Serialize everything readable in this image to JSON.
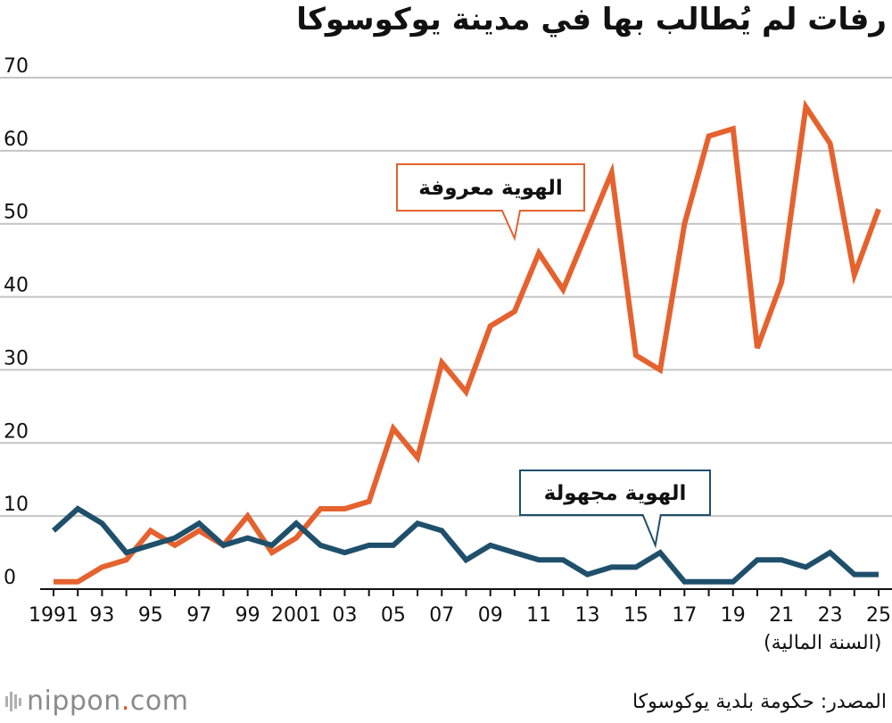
{
  "colors": {
    "known": "#e5622f",
    "unknown": "#1f4f6b",
    "grid": "#c4c4c4",
    "axis": "#111111"
  },
  "chart_data": {
    "type": "line",
    "title": "رفات لم يُطالب بها في مدينة يوكوسوكا",
    "xlabel": "(السنة المالية)",
    "ylabel": "",
    "ylim": [
      0,
      70
    ],
    "yticks": [
      0,
      10,
      20,
      30,
      40,
      50,
      60,
      70
    ],
    "x": [
      1991,
      1992,
      1993,
      1994,
      1995,
      1996,
      1997,
      1998,
      1999,
      2000,
      2001,
      2002,
      2003,
      2004,
      2005,
      2006,
      2007,
      2008,
      2009,
      2010,
      2011,
      2012,
      2013,
      2014,
      2015,
      2016,
      2017,
      2018,
      2019,
      2020,
      2021,
      2022,
      2023,
      2024,
      2025
    ],
    "xticks": [
      {
        "x": 1991,
        "label": "1991"
      },
      {
        "x": 1993,
        "label": "93"
      },
      {
        "x": 1995,
        "label": "95"
      },
      {
        "x": 1997,
        "label": "97"
      },
      {
        "x": 1999,
        "label": "99"
      },
      {
        "x": 2001,
        "label": "2001"
      },
      {
        "x": 2003,
        "label": "03"
      },
      {
        "x": 2005,
        "label": "05"
      },
      {
        "x": 2007,
        "label": "07"
      },
      {
        "x": 2009,
        "label": "09"
      },
      {
        "x": 2011,
        "label": "11"
      },
      {
        "x": 2013,
        "label": "13"
      },
      {
        "x": 2015,
        "label": "15"
      },
      {
        "x": 2017,
        "label": "17"
      },
      {
        "x": 2019,
        "label": "19"
      },
      {
        "x": 2021,
        "label": "21"
      },
      {
        "x": 2023,
        "label": "23"
      },
      {
        "x": 2025,
        "label": "25"
      }
    ],
    "grid": true,
    "series": [
      {
        "name": "الهوية معروفة",
        "color": "#e5622f",
        "values": [
          1,
          1,
          3,
          4,
          8,
          6,
          8,
          6,
          10,
          5,
          7,
          11,
          11,
          12,
          22,
          18,
          31,
          27,
          36,
          38,
          46,
          41,
          49,
          57,
          32,
          30,
          50,
          62,
          63,
          33,
          42,
          66,
          61,
          43,
          52
        ]
      },
      {
        "name": "الهوية مجهولة",
        "color": "#1f4f6b",
        "values": [
          8,
          11,
          9,
          5,
          6,
          7,
          9,
          6,
          7,
          6,
          9,
          6,
          5,
          6,
          6,
          9,
          8,
          4,
          6,
          5,
          4,
          4,
          2,
          3,
          3,
          5,
          1,
          1,
          1,
          4,
          4,
          3,
          5,
          2,
          2
        ]
      }
    ],
    "annotations": [
      {
        "series": 0,
        "label": "الهوية معروفة",
        "pointer_x": 2010.0,
        "pointer_y": 48
      },
      {
        "series": 1,
        "label": "الهوية مجهولة",
        "pointer_x": 2015.8,
        "pointer_y": 6
      }
    ]
  },
  "footer": {
    "logo_name": "nippon",
    "logo_dot": ".",
    "logo_tld": "com",
    "source": "المصدر: حكومة بلدية يوكوسوكا"
  }
}
